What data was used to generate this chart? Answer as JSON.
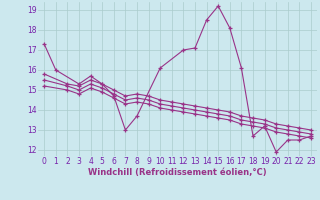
{
  "xlabel": "Windchill (Refroidissement éolien,°C)",
  "background_color": "#cce8ee",
  "grid_color": "#aacccc",
  "line_color": "#993388",
  "x_hours": [
    0,
    1,
    2,
    3,
    4,
    5,
    6,
    7,
    8,
    9,
    10,
    11,
    12,
    13,
    14,
    15,
    16,
    17,
    18,
    19,
    20,
    21,
    22,
    23
  ],
  "series1": [
    17.3,
    16.0,
    null,
    15.3,
    15.7,
    15.3,
    14.7,
    13.0,
    13.7,
    null,
    16.1,
    null,
    17.0,
    17.1,
    18.5,
    19.2,
    18.1,
    16.1,
    12.7,
    13.2,
    11.9,
    12.5,
    12.5,
    12.7
  ],
  "series2": [
    15.8,
    null,
    15.3,
    15.2,
    15.5,
    15.3,
    15.0,
    14.7,
    14.8,
    14.7,
    14.5,
    14.4,
    14.3,
    14.2,
    14.1,
    14.0,
    13.9,
    13.7,
    13.6,
    13.5,
    13.3,
    13.2,
    13.1,
    13.0
  ],
  "series3": [
    15.5,
    null,
    15.2,
    15.0,
    15.3,
    15.1,
    14.8,
    14.5,
    14.6,
    14.5,
    14.3,
    14.2,
    14.1,
    14.0,
    13.9,
    13.8,
    13.7,
    13.5,
    13.4,
    13.3,
    13.1,
    13.0,
    12.9,
    12.8
  ],
  "series4": [
    15.2,
    null,
    15.0,
    14.8,
    15.1,
    14.9,
    14.6,
    14.3,
    14.4,
    14.3,
    14.1,
    14.0,
    13.9,
    13.8,
    13.7,
    13.6,
    13.5,
    13.3,
    13.2,
    13.1,
    12.9,
    12.8,
    12.7,
    12.6
  ],
  "ylim": [
    11.7,
    19.4
  ],
  "yticks": [
    12,
    13,
    14,
    15,
    16,
    17,
    18,
    19
  ],
  "xticks": [
    0,
    1,
    2,
    3,
    4,
    5,
    6,
    7,
    8,
    9,
    10,
    11,
    12,
    13,
    14,
    15,
    16,
    17,
    18,
    19,
    20,
    21,
    22,
    23
  ],
  "tick_fontsize": 5.5,
  "label_fontsize": 6.0
}
